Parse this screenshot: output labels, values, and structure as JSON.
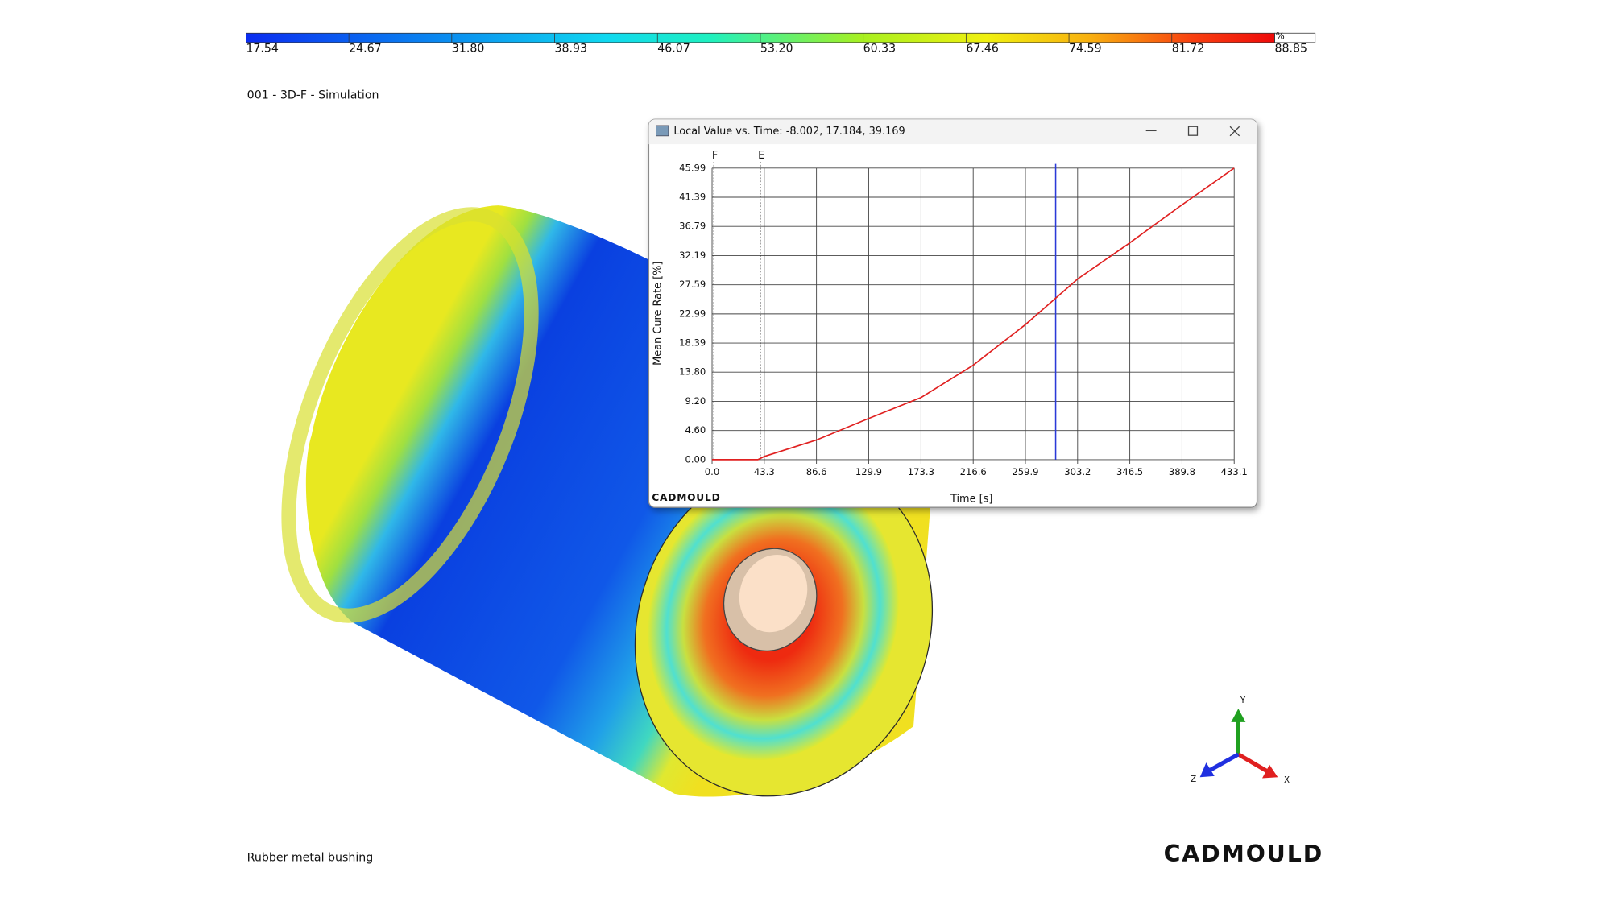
{
  "colorbar": {
    "unit": "%",
    "labels": [
      "17.54",
      "24.67",
      "31.80",
      "38.93",
      "46.07",
      "53.20",
      "60.33",
      "67.46",
      "74.59",
      "81.72",
      "88.85"
    ]
  },
  "viewport": {
    "label": "001 - 3D-F - Simulation",
    "caption": "Rubber metal bushing",
    "logo": "CADMOULD"
  },
  "triad": {
    "y": "Y",
    "x": "X",
    "z": "Z"
  },
  "window": {
    "title": "Local Value vs. Time: -8.002, 17.184, 39.169",
    "logo": "CADMOULD"
  },
  "chart_data": {
    "type": "line",
    "xlabel": "Time [s]",
    "ylabel": "Mean Cure Rate [%]",
    "x": [
      0,
      20,
      38,
      43.3,
      86.6,
      129.9,
      173.3,
      216.6,
      259.9,
      303.2,
      346.5,
      389.8,
      433.1
    ],
    "values": [
      0,
      0,
      0,
      0.5,
      3.1,
      6.5,
      9.8,
      14.9,
      21.3,
      28.5,
      34.2,
      40.2,
      45.99
    ],
    "color": "#e02020",
    "xlim": [
      0,
      433.1
    ],
    "ylim": [
      0,
      45.99
    ],
    "xticks": [
      {
        "value": 0,
        "label": "0.0"
      },
      43.3,
      86.6,
      129.9,
      173.3,
      216.6,
      259.9,
      303.2,
      346.5,
      389.8,
      433.1
    ],
    "yticks": [
      {
        "value": 0,
        "label": "0.00"
      },
      {
        "value": 4.6,
        "label": "4.60"
      },
      {
        "value": 9.2,
        "label": "9.20"
      },
      {
        "value": 13.8,
        "label": "13.80"
      },
      18.39,
      22.99,
      27.59,
      32.19,
      36.79,
      41.39,
      45.99
    ],
    "grid": true,
    "markers": [
      {
        "label": "F",
        "x": 1.5
      },
      {
        "label": "E",
        "x": 40
      }
    ],
    "cursor": {
      "x": 285,
      "color": "#2a3ad8"
    }
  }
}
